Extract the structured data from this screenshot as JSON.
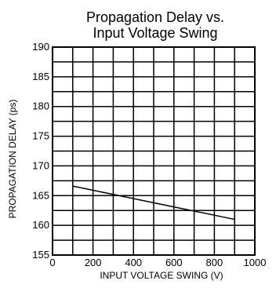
{
  "chart_data": {
    "type": "line",
    "title": "Propagation Delay vs.",
    "subtitle": "Input Voltage Swing",
    "xlabel": "INPUT VOLTAGE SWING (V)",
    "ylabel": "PROPAGATION DELAY (ps)",
    "xlim": [
      0,
      1000
    ],
    "ylim": [
      155,
      190
    ],
    "x_ticks": [
      0,
      200,
      400,
      600,
      800,
      1000
    ],
    "x_tick_labels": [
      "0",
      "200",
      "400",
      "600",
      "800",
      "1000"
    ],
    "y_ticks": [
      155,
      160,
      165,
      170,
      175,
      180,
      185,
      190
    ],
    "y_tick_labels": [
      "155",
      "160",
      "165",
      "170",
      "175",
      "180",
      "185",
      "190"
    ],
    "grid": true,
    "series": [
      {
        "x": [
          100,
          300,
          500,
          700,
          900
        ],
        "y": [
          166.6,
          165.2,
          163.8,
          162.4,
          161.0
        ]
      }
    ],
    "line_color": "#000000",
    "grid_color": "#000000"
  }
}
